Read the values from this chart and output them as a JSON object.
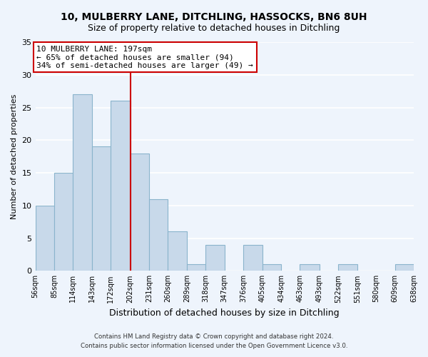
{
  "title": "10, MULBERRY LANE, DITCHLING, HASSOCKS, BN6 8UH",
  "subtitle": "Size of property relative to detached houses in Ditchling",
  "xlabel": "Distribution of detached houses by size in Ditchling",
  "ylabel": "Number of detached properties",
  "bin_edges": [
    56,
    85,
    114,
    143,
    172,
    202,
    231,
    260,
    289,
    318,
    347,
    376,
    405,
    434,
    463,
    493,
    522,
    551,
    580,
    609,
    638
  ],
  "bin_labels": [
    "56sqm",
    "85sqm",
    "114sqm",
    "143sqm",
    "172sqm",
    "202sqm",
    "231sqm",
    "260sqm",
    "289sqm",
    "318sqm",
    "347sqm",
    "376sqm",
    "405sqm",
    "434sqm",
    "463sqm",
    "493sqm",
    "522sqm",
    "551sqm",
    "580sqm",
    "609sqm",
    "638sqm"
  ],
  "counts": [
    10,
    15,
    27,
    19,
    26,
    18,
    11,
    6,
    1,
    4,
    0,
    4,
    1,
    0,
    1,
    0,
    1,
    0,
    0,
    1
  ],
  "bar_color": "#c8d9ea",
  "bar_edge_color": "#8ab4cc",
  "vline_x": 202,
  "vline_color": "#cc0000",
  "annotation_title": "10 MULBERRY LANE: 197sqm",
  "annotation_line1": "← 65% of detached houses are smaller (94)",
  "annotation_line2": "34% of semi-detached houses are larger (49) →",
  "annotation_box_color": "white",
  "annotation_box_edge_color": "#cc0000",
  "ylim": [
    0,
    35
  ],
  "yticks": [
    0,
    5,
    10,
    15,
    20,
    25,
    30,
    35
  ],
  "footer1": "Contains HM Land Registry data © Crown copyright and database right 2024.",
  "footer2": "Contains public sector information licensed under the Open Government Licence v3.0.",
  "bg_color": "#eef4fc"
}
